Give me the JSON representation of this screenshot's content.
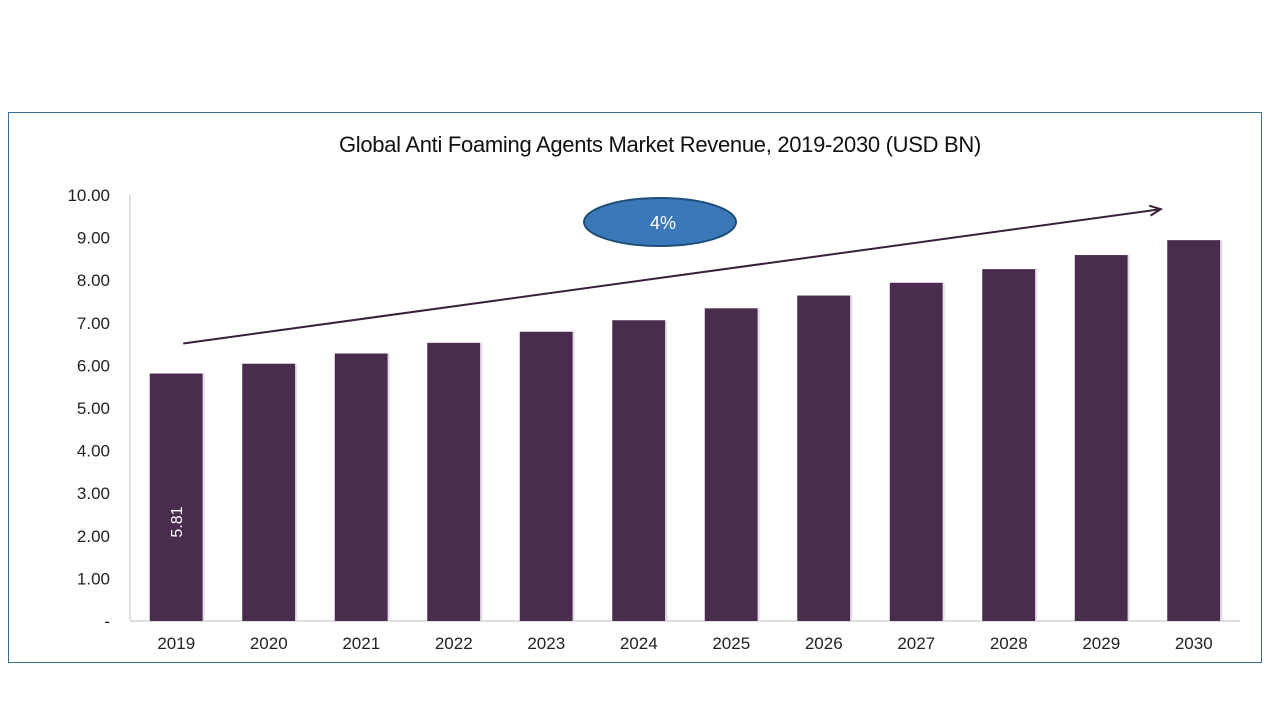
{
  "chart_data": {
    "type": "bar",
    "title": "Global Anti Foaming Agents Market Revenue, 2019-2030 (USD BN)",
    "xlabel": "",
    "ylabel": "",
    "categories": [
      "2019",
      "2020",
      "2021",
      "2022",
      "2023",
      "2024",
      "2025",
      "2026",
      "2027",
      "2028",
      "2029",
      "2030"
    ],
    "values": [
      5.81,
      6.04,
      6.28,
      6.53,
      6.79,
      7.06,
      7.34,
      7.64,
      7.94,
      8.26,
      8.59,
      8.94
    ],
    "ylim": [
      0,
      10
    ],
    "yticks": [
      "-",
      "1.00",
      "2.00",
      "3.00",
      "4.00",
      "5.00",
      "6.00",
      "7.00",
      "8.00",
      "9.00",
      "10.00"
    ],
    "data_labels": [
      {
        "category": "2019",
        "text": "5.81"
      }
    ],
    "annotation": {
      "text": "4%",
      "shape": "ellipse",
      "color": "#3a78b8"
    },
    "trend_arrow": true,
    "bar_color": "#4a2c4e",
    "grid": false
  }
}
